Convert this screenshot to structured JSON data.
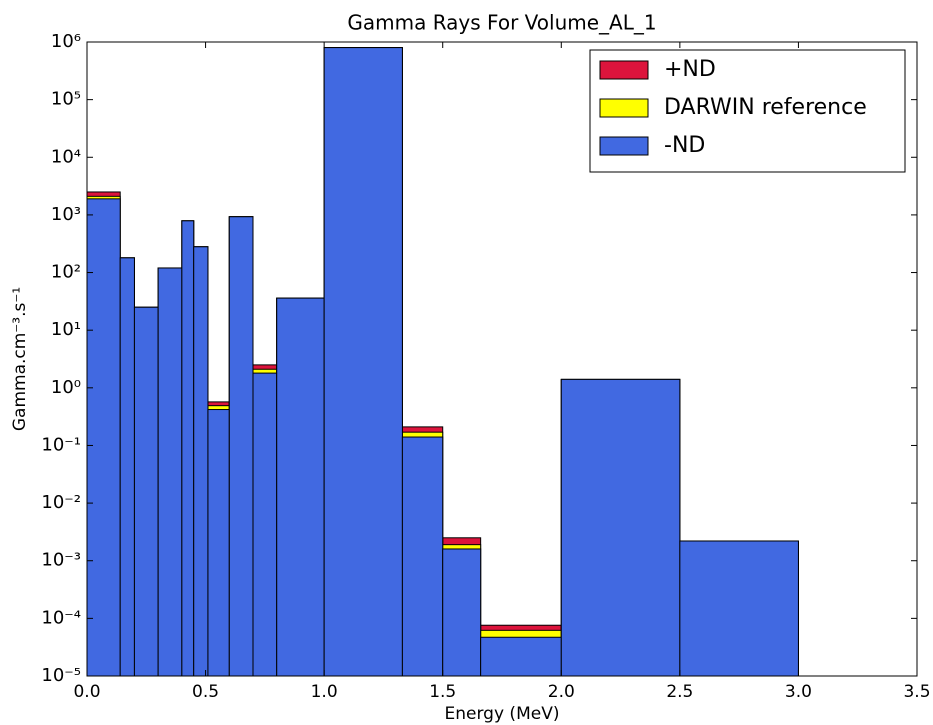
{
  "chart_data": {
    "type": "histogram",
    "title": "Gamma Rays For Volume_AL_1",
    "x_label": "Energy (MeV)",
    "y_label": "Gamma.cm⁻³.s⁻¹",
    "bins": [
      0,
      0.14,
      0.2,
      0.3,
      0.4,
      0.45,
      0.51,
      0.6,
      0.7,
      0.8,
      1.0,
      1.33,
      1.5,
      1.66,
      2.0,
      2.5,
      3.0
    ],
    "series": [
      {
        "name": "+ND",
        "color": "#dc143c",
        "values": [
          2500,
          180,
          25,
          120,
          790,
          280,
          0.57,
          930,
          2.5,
          36,
          800000,
          0.21,
          0.0025,
          7.6e-05,
          1.4,
          0.0022
        ]
      },
      {
        "name": "DARWIN reference",
        "color": "#ffff00",
        "values": [
          2100,
          180,
          25,
          120,
          790,
          280,
          0.49,
          930,
          2.1,
          36,
          800000,
          0.17,
          0.0019,
          6.2e-05,
          1.4,
          0.0022
        ]
      },
      {
        "name": "-ND",
        "color": "#4169e1",
        "values": [
          1900,
          180,
          25,
          120,
          790,
          280,
          0.42,
          930,
          1.8,
          36,
          800000,
          0.14,
          0.0016,
          4.7e-05,
          1.4,
          0.0022
        ]
      }
    ],
    "xlim": [
      0,
      3.5
    ],
    "xticks": [
      {
        "value": 0,
        "label": "0.0"
      },
      0.5,
      {
        "value": 1,
        "label": "1.0"
      },
      1.5,
      {
        "value": 2,
        "label": "2.0"
      },
      2.5,
      {
        "value": 3,
        "label": "3.0"
      },
      3.5
    ],
    "ylim": [
      1e-05,
      1000000
    ],
    "ylog": true,
    "yticks": [
      {
        "value": 1e-05,
        "label": "10⁻⁵"
      },
      {
        "value": 0.0001,
        "label": "10⁻⁴"
      },
      {
        "value": 0.001,
        "label": "10⁻³"
      },
      {
        "value": 0.01,
        "label": "10⁻²"
      },
      {
        "value": 0.1,
        "label": "10⁻¹"
      },
      {
        "value": 1,
        "label": "10⁰"
      },
      {
        "value": 10,
        "label": "10¹"
      },
      {
        "value": 100,
        "label": "10²"
      },
      {
        "value": 1000,
        "label": "10³"
      },
      {
        "value": 10000,
        "label": "10⁴"
      },
      {
        "value": 100000,
        "label": "10⁵"
      },
      {
        "value": 1000000,
        "label": "10⁶"
      }
    ],
    "legend": "upper right",
    "grid": false
  }
}
